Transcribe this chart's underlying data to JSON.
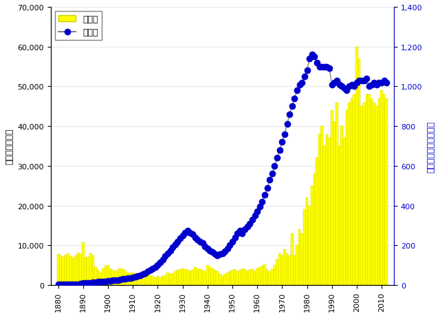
{
  "ylabel_left": "来遂数（千尾）",
  "ylabel_right": "稚魚放流数（百万尾）",
  "legend_bar": "来遂数",
  "legend_line": "放流数",
  "bar_color": "#FFFF00",
  "bar_edge_color": "#CCCC00",
  "line_color": "#808080",
  "dot_color": "#0000CC",
  "ylim_left": [
    0,
    70000
  ],
  "ylim_right": [
    0,
    1400
  ],
  "years_bar": [
    1880,
    1881,
    1882,
    1883,
    1884,
    1885,
    1886,
    1887,
    1888,
    1889,
    1890,
    1891,
    1892,
    1893,
    1894,
    1895,
    1896,
    1897,
    1898,
    1899,
    1900,
    1901,
    1902,
    1903,
    1904,
    1905,
    1906,
    1907,
    1908,
    1909,
    1910,
    1911,
    1912,
    1913,
    1914,
    1915,
    1916,
    1917,
    1918,
    1919,
    1920,
    1921,
    1922,
    1923,
    1924,
    1925,
    1926,
    1927,
    1928,
    1929,
    1930,
    1931,
    1932,
    1933,
    1934,
    1935,
    1936,
    1937,
    1938,
    1939,
    1940,
    1941,
    1942,
    1943,
    1944,
    1945,
    1946,
    1947,
    1948,
    1949,
    1950,
    1951,
    1952,
    1953,
    1954,
    1955,
    1956,
    1957,
    1958,
    1959,
    1960,
    1961,
    1962,
    1963,
    1964,
    1965,
    1966,
    1967,
    1968,
    1969,
    1970,
    1971,
    1972,
    1973,
    1974,
    1975,
    1976,
    1977,
    1978,
    1979,
    1980,
    1981,
    1982,
    1983,
    1984,
    1985,
    1986,
    1987,
    1988,
    1989,
    1990,
    1991,
    1992,
    1993,
    1994,
    1995,
    1996,
    1997,
    1998,
    1999,
    2000,
    2001,
    2002,
    2003,
    2004,
    2005,
    2006,
    2007,
    2008,
    2009,
    2010,
    2011,
    2012
  ],
  "values_bar": [
    7800,
    7500,
    7200,
    7600,
    8000,
    7300,
    6800,
    7500,
    8200,
    7800,
    10800,
    7000,
    7200,
    8000,
    7500,
    4500,
    3800,
    3200,
    4200,
    4800,
    5000,
    4200,
    3800,
    3500,
    4000,
    4200,
    4000,
    3600,
    3200,
    3000,
    3200,
    3000,
    2800,
    2500,
    2200,
    2500,
    2800,
    2500,
    2200,
    2000,
    2300,
    2000,
    2200,
    2500,
    3200,
    2800,
    3000,
    3500,
    3800,
    4000,
    4200,
    4000,
    3800,
    3500,
    3800,
    4500,
    4200,
    4000,
    3800,
    3500,
    5000,
    4500,
    4200,
    3800,
    3500,
    2800,
    2200,
    2800,
    3200,
    3500,
    3800,
    4000,
    3500,
    3800,
    4200,
    4000,
    3500,
    3800,
    4000,
    3500,
    4200,
    4500,
    4800,
    5200,
    4000,
    3500,
    4000,
    5000,
    6500,
    8000,
    7500,
    9000,
    8000,
    7500,
    13000,
    7500,
    10000,
    14000,
    13000,
    19000,
    22000,
    20000,
    25000,
    28000,
    32000,
    38000,
    40000,
    35000,
    38000,
    37000,
    44000,
    41000,
    46000,
    35000,
    40000,
    37000,
    44000,
    46000,
    47000,
    48000,
    60000,
    57000,
    45000,
    46000,
    48000,
    48000,
    47000,
    46000,
    45000,
    47000,
    49000,
    48000,
    47000
  ],
  "years_line": [
    1880,
    1881,
    1882,
    1883,
    1884,
    1885,
    1886,
    1887,
    1888,
    1889,
    1890,
    1891,
    1892,
    1893,
    1894,
    1895,
    1896,
    1897,
    1898,
    1899,
    1900,
    1901,
    1902,
    1903,
    1904,
    1905,
    1906,
    1907,
    1908,
    1909,
    1910,
    1911,
    1912,
    1913,
    1914,
    1915,
    1916,
    1917,
    1918,
    1919,
    1920,
    1921,
    1922,
    1923,
    1924,
    1925,
    1926,
    1927,
    1928,
    1929,
    1930,
    1931,
    1932,
    1933,
    1934,
    1935,
    1936,
    1937,
    1938,
    1939,
    1940,
    1941,
    1942,
    1943,
    1944,
    1945,
    1946,
    1947,
    1948,
    1949,
    1950,
    1951,
    1952,
    1953,
    1954,
    1955,
    1956,
    1957,
    1958,
    1959,
    1960,
    1961,
    1962,
    1963,
    1964,
    1965,
    1966,
    1967,
    1968,
    1969,
    1970,
    1971,
    1972,
    1973,
    1974,
    1975,
    1976,
    1977,
    1978,
    1979,
    1980,
    1981,
    1982,
    1983,
    1984,
    1985,
    1986,
    1987,
    1988,
    1989,
    1990,
    1991,
    1992,
    1993,
    1994,
    1995,
    1996,
    1997,
    1998,
    1999,
    2000,
    2001,
    2002,
    2003,
    2004,
    2005,
    2006,
    2007,
    2008,
    2009,
    2010,
    2011,
    2012
  ],
  "values_line": [
    5,
    5,
    5,
    5,
    5,
    5,
    5,
    5,
    5,
    8,
    10,
    10,
    12,
    12,
    14,
    14,
    16,
    16,
    18,
    18,
    20,
    22,
    24,
    24,
    26,
    28,
    30,
    32,
    34,
    36,
    38,
    42,
    46,
    50,
    55,
    60,
    68,
    75,
    82,
    90,
    100,
    115,
    130,
    145,
    160,
    175,
    190,
    205,
    220,
    235,
    250,
    265,
    275,
    265,
    255,
    240,
    230,
    220,
    210,
    195,
    185,
    175,
    165,
    155,
    150,
    155,
    160,
    170,
    185,
    200,
    220,
    240,
    260,
    275,
    260,
    280,
    295,
    310,
    330,
    350,
    370,
    395,
    420,
    455,
    490,
    530,
    560,
    600,
    640,
    680,
    720,
    760,
    810,
    860,
    900,
    940,
    980,
    1010,
    1020,
    1050,
    1080,
    1140,
    1160,
    1150,
    1120,
    1100,
    1100,
    1100,
    1100,
    1090,
    1010,
    1020,
    1030,
    1010,
    1000,
    990,
    980,
    1000,
    1010,
    1000,
    1020,
    1030,
    1030,
    1030,
    1040,
    1000,
    1010,
    1020,
    1010,
    1020,
    1020,
    1030,
    1020
  ]
}
